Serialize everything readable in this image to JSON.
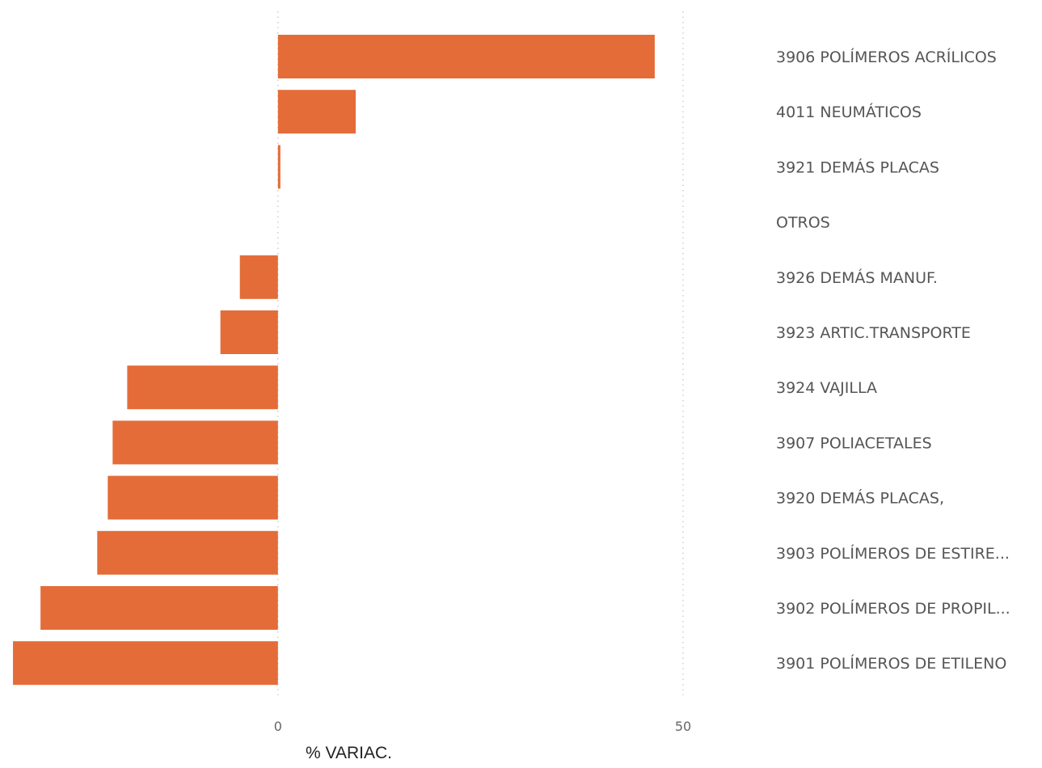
{
  "chart_data": {
    "type": "bar",
    "orientation": "horizontal",
    "categories": [
      "3906 POLÍMEROS ACRÍLICOS",
      "4011 NEUMÁTICOS",
      "3921 DEMÁS PLACAS",
      "OTROS",
      "3926 DEMÁS MANUF.",
      "3923 ARTIC.TRANSPORTE",
      "3924 VAJILLA",
      "3907 POLIACETALES",
      "3920 DEMÁS PLACAS,",
      "3903 POLÍMEROS DE ESTIRE...",
      "3902 POLÍMEROS DE PROPIL...",
      "3901 POLÍMEROS DE ETILENO"
    ],
    "values": [
      46.5,
      9.6,
      0.3,
      0,
      -4.7,
      -7.1,
      -18.6,
      -20.4,
      -21.0,
      -22.3,
      -29.3,
      -32.7
    ],
    "xlabel": "% VARIAC.",
    "xlim": [
      -34.3,
      50
    ],
    "xticks": [
      0,
      50
    ],
    "xtick_labels": [
      "0",
      "50"
    ],
    "grid": "vertical-dotted",
    "legend": "none",
    "bar_color": "#E46C38",
    "grid_color": "#C8C8C8"
  }
}
